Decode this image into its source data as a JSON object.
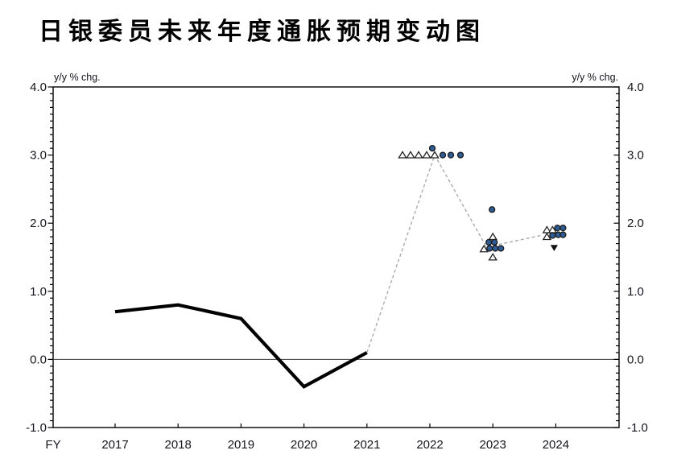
{
  "header": {
    "title": "日银委员未来年度通胀预期变动图"
  },
  "axes": {
    "left_unit_label": "y/y % chg.",
    "right_unit_label": "y/y % chg.",
    "x_axis_prefix": "FY",
    "x_tick_labels": [
      "2017",
      "2018",
      "2019",
      "2020",
      "2021",
      "2022",
      "2023",
      "2024"
    ],
    "y_tick_values": [
      4.0,
      3.0,
      2.0,
      1.0,
      0.0,
      -1.0
    ],
    "y_tick_labels": [
      "4.0",
      "3.0",
      "2.0",
      "1.0",
      "0.0",
      "-1.0"
    ],
    "y_minor_step": 0.1,
    "ylim": [
      -1.0,
      4.0
    ],
    "zero_line": 0.0
  },
  "colors": {
    "actual_line": "#000000",
    "forecast_dash": "#ababab",
    "marker_blue": "#2f5b94",
    "marker_outline": "#1b1b1b",
    "axis": "#000000",
    "zero_line": "#3c3c3c"
  },
  "chart_data": {
    "type": "line",
    "title": "日银委员未来年度通胀预期变动图",
    "xlabel": "FY",
    "ylabel": "y/y % chg.",
    "ylim": [
      -1.0,
      4.0
    ],
    "x_categories": [
      2017,
      2018,
      2019,
      2020,
      2021,
      2022,
      2023,
      2024
    ],
    "series": [
      {
        "name": "actual-inflation",
        "style": "solid",
        "width": 4.2,
        "color": "#000000",
        "points": [
          {
            "x": 2017,
            "y": 0.7
          },
          {
            "x": 2018,
            "y": 0.8
          },
          {
            "x": 2019,
            "y": 0.6
          },
          {
            "x": 2020,
            "y": -0.4
          },
          {
            "x": 2021,
            "y": 0.1
          }
        ]
      },
      {
        "name": "forecast-path",
        "style": "dashed",
        "width": 1.4,
        "color": "#ababab",
        "points": [
          {
            "x": 2021,
            "y": 0.1,
            "dx": 0
          },
          {
            "x": 2022,
            "y": 3.0,
            "dx": 6
          },
          {
            "x": 2023,
            "y": 1.65,
            "dx": -8
          },
          {
            "x": 2024,
            "y": 1.82,
            "dx": -18
          }
        ]
      }
    ],
    "scatter": [
      {
        "x": 2022,
        "dx": -34,
        "y": 3.0,
        "marker": "triangle-open"
      },
      {
        "x": 2022,
        "dx": -24,
        "y": 3.0,
        "marker": "triangle-open"
      },
      {
        "x": 2022,
        "dx": -14,
        "y": 3.0,
        "marker": "triangle-open"
      },
      {
        "x": 2022,
        "dx": -4,
        "y": 3.0,
        "marker": "triangle-open"
      },
      {
        "x": 2022,
        "dx": 6,
        "y": 3.0,
        "marker": "triangle-open"
      },
      {
        "x": 2022,
        "dx": 3,
        "y": 3.1,
        "marker": "circle-filled"
      },
      {
        "x": 2022,
        "dx": 16,
        "y": 3.0,
        "marker": "circle-filled"
      },
      {
        "x": 2022,
        "dx": 26,
        "y": 3.0,
        "marker": "circle-filled"
      },
      {
        "x": 2022,
        "dx": 38,
        "y": 3.0,
        "marker": "circle-filled"
      },
      {
        "x": 2023,
        "dx": -1,
        "y": 2.2,
        "marker": "circle-filled"
      },
      {
        "x": 2023,
        "dx": 0,
        "y": 1.8,
        "marker": "triangle-open"
      },
      {
        "x": 2023,
        "dx": -5,
        "y": 1.72,
        "marker": "circle-filled"
      },
      {
        "x": 2023,
        "dx": 2,
        "y": 1.72,
        "marker": "circle-filled"
      },
      {
        "x": 2023,
        "dx": -11,
        "y": 1.62,
        "marker": "triangle-open"
      },
      {
        "x": 2023,
        "dx": -4,
        "y": 1.63,
        "marker": "circle-filled"
      },
      {
        "x": 2023,
        "dx": 3,
        "y": 1.63,
        "marker": "circle-filled"
      },
      {
        "x": 2023,
        "dx": 10,
        "y": 1.63,
        "marker": "circle-filled"
      },
      {
        "x": 2023,
        "dx": 0,
        "y": 1.5,
        "marker": "triangle-open"
      },
      {
        "x": 2024,
        "dx": -11,
        "y": 1.9,
        "marker": "triangle-open"
      },
      {
        "x": 2024,
        "dx": -4,
        "y": 1.9,
        "marker": "triangle-open"
      },
      {
        "x": 2024,
        "dx": 2,
        "y": 1.93,
        "marker": "circle-filled"
      },
      {
        "x": 2024,
        "dx": 9,
        "y": 1.93,
        "marker": "circle-filled"
      },
      {
        "x": 2024,
        "dx": -11,
        "y": 1.8,
        "marker": "triangle-open"
      },
      {
        "x": 2024,
        "dx": -4,
        "y": 1.82,
        "marker": "circle-filled"
      },
      {
        "x": 2024,
        "dx": 3,
        "y": 1.83,
        "marker": "circle-filled"
      },
      {
        "x": 2024,
        "dx": 9,
        "y": 1.83,
        "marker": "circle-filled"
      },
      {
        "x": 2024,
        "dx": -2,
        "y": 1.64,
        "marker": "triangle-down-filled"
      }
    ]
  }
}
